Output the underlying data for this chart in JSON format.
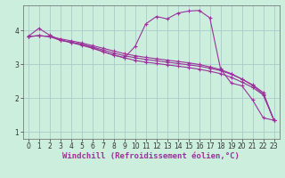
{
  "xlabel": "Windchill (Refroidissement éolien,°C)",
  "background_color": "#cceedd",
  "grid_color": "#aacccc",
  "line_color": "#993399",
  "xlim": [
    -0.5,
    23.5
  ],
  "ylim": [
    0.8,
    4.75
  ],
  "xticks": [
    0,
    1,
    2,
    3,
    4,
    5,
    6,
    7,
    8,
    9,
    10,
    11,
    12,
    13,
    14,
    15,
    16,
    17,
    18,
    19,
    20,
    21,
    22,
    23
  ],
  "yticks": [
    1,
    2,
    3,
    4
  ],
  "line1_x": [
    0,
    1,
    2,
    3,
    4,
    5,
    6,
    7,
    8,
    9,
    10,
    11,
    12,
    13,
    14,
    15,
    16,
    17,
    18,
    19,
    20,
    21,
    22,
    23
  ],
  "line1_y": [
    3.83,
    4.07,
    3.87,
    3.73,
    3.65,
    3.6,
    3.5,
    3.38,
    3.28,
    3.2,
    3.53,
    4.2,
    4.42,
    4.35,
    4.52,
    4.58,
    4.6,
    4.38,
    2.87,
    2.45,
    2.37,
    1.95,
    1.42,
    1.35
  ],
  "line2_x": [
    0,
    1,
    2,
    3,
    4,
    5,
    6,
    7,
    8,
    9,
    10,
    11,
    12,
    13,
    14,
    15,
    16,
    17,
    18,
    19,
    20,
    21,
    22,
    23
  ],
  "line2_y": [
    3.83,
    3.85,
    3.83,
    3.72,
    3.65,
    3.57,
    3.48,
    3.38,
    3.28,
    3.2,
    3.12,
    3.07,
    3.03,
    2.99,
    2.95,
    2.91,
    2.86,
    2.8,
    2.73,
    2.62,
    2.48,
    2.32,
    2.1,
    1.35
  ],
  "line3_x": [
    0,
    1,
    2,
    3,
    4,
    5,
    6,
    7,
    8,
    9,
    10,
    11,
    12,
    13,
    14,
    15,
    16,
    17,
    18,
    19,
    20,
    21,
    22,
    23
  ],
  "line3_y": [
    3.83,
    3.85,
    3.83,
    3.72,
    3.66,
    3.6,
    3.52,
    3.43,
    3.34,
    3.26,
    3.2,
    3.15,
    3.11,
    3.07,
    3.03,
    2.99,
    2.95,
    2.89,
    2.82,
    2.71,
    2.57,
    2.4,
    2.17,
    1.35
  ],
  "line4_x": [
    0,
    1,
    2,
    3,
    4,
    5,
    6,
    7,
    8,
    9,
    10,
    11,
    12,
    13,
    14,
    15,
    16,
    17,
    18,
    19,
    20,
    21,
    22,
    23
  ],
  "line4_y": [
    3.83,
    3.85,
    3.83,
    3.76,
    3.7,
    3.64,
    3.56,
    3.48,
    3.4,
    3.32,
    3.26,
    3.21,
    3.17,
    3.13,
    3.09,
    3.05,
    3.0,
    2.93,
    2.85,
    2.73,
    2.57,
    2.38,
    2.12,
    1.35
  ],
  "marker": "+",
  "markersize": 3,
  "linewidth": 0.8,
  "xlabel_fontsize": 6.5,
  "tick_fontsize": 5.5,
  "fig_width": 3.2,
  "fig_height": 2.0,
  "dpi": 100
}
